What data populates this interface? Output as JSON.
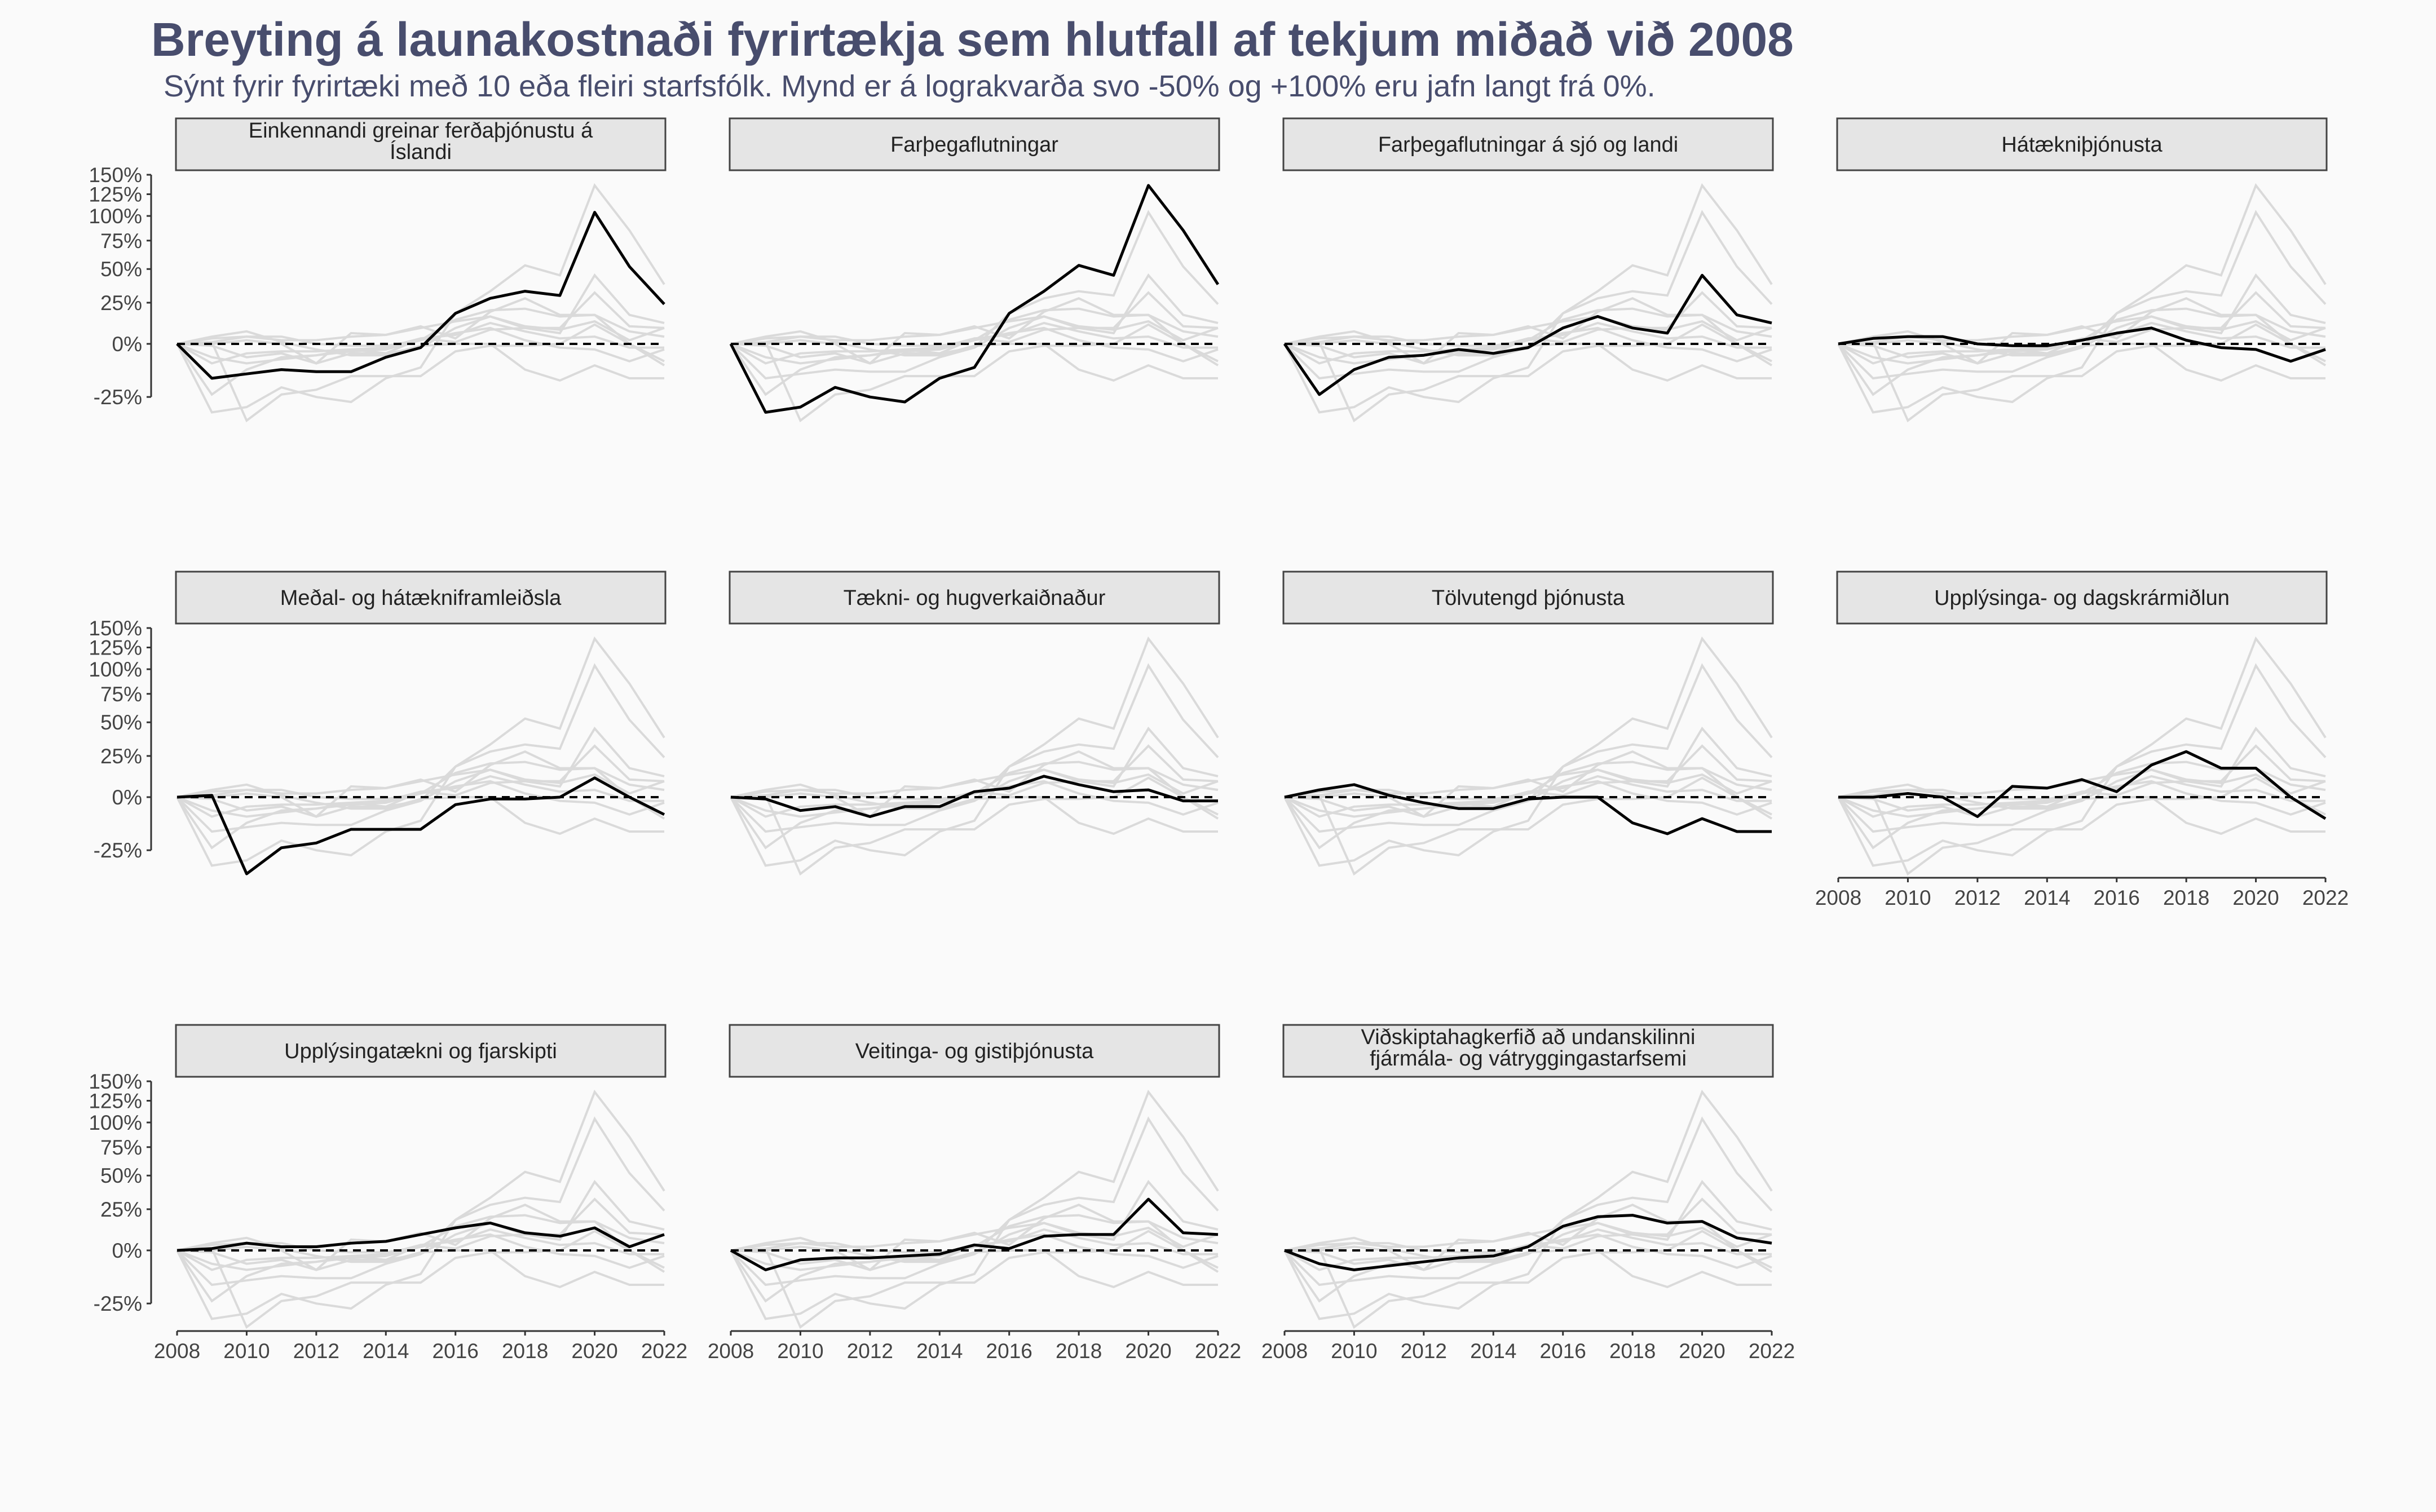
{
  "chart_data": {
    "type": "line",
    "title": "Breyting á launakostnaði fyrirtækja sem hlutfall af tekjum miðað við 2008",
    "subtitle": "Sýnt fyrir fyrirtæki með 10 eða fleiri starfsfólk. Mynd er á lograkvarða svo -50% og +100% eru jafn langt frá 0%.",
    "xlabel": "",
    "ylabel": "",
    "y_scale": "log",
    "x_ticks": [
      2008,
      2010,
      2012,
      2014,
      2016,
      2018,
      2020,
      2022
    ],
    "y_ticks": [
      -25,
      0,
      25,
      50,
      75,
      100,
      125,
      150
    ],
    "y_tick_labels": [
      "-25%",
      "0%",
      "25%",
      "50%",
      "75%",
      "100%",
      "125%",
      "150%"
    ],
    "ylim": [
      -27,
      150
    ],
    "xlim": [
      2008,
      2022
    ],
    "zero_line": "dashed",
    "grid": false,
    "x": [
      2008,
      2009,
      2010,
      2011,
      2012,
      2013,
      2014,
      2015,
      2016,
      2017,
      2018,
      2019,
      2020,
      2021,
      2022
    ],
    "series": [
      {
        "name": "Einkennandi greinar ferðaþjónustu á Íslandi",
        "values": [
          0,
          -17,
          -15,
          -13,
          -14,
          -14,
          -7,
          -2,
          18,
          28,
          33,
          30,
          104,
          52,
          24
        ]
      },
      {
        "name": "Farþegaflutningar",
        "values": [
          0,
          -31,
          -29,
          -21,
          -25,
          -27,
          -17,
          -12,
          18,
          33,
          53,
          45,
          136,
          85,
          38
        ]
      },
      {
        "name": "Farþegaflutningar á sjó og landi",
        "values": [
          0,
          -24,
          -13,
          -7,
          -6,
          -3,
          -5,
          -2,
          9,
          16,
          9,
          6,
          45,
          17,
          12
        ]
      },
      {
        "name": "Hátækniþjónusta",
        "values": [
          0,
          3,
          4,
          4,
          0,
          -1,
          -1,
          2,
          6,
          9,
          2,
          -2,
          -3,
          -9,
          -3
        ]
      },
      {
        "name": "Meðal- og hátækniframleiðsla",
        "values": [
          0,
          1,
          -34,
          -24,
          -22,
          -16,
          -16,
          -16,
          -4,
          -1,
          -1,
          0,
          11,
          0,
          -9
        ]
      },
      {
        "name": "Tækni- og hugverkaiðnaður",
        "values": [
          0,
          -1,
          -7,
          -5,
          -10,
          -5,
          -5,
          3,
          5,
          12,
          7,
          3,
          4,
          -2,
          -2
        ]
      },
      {
        "name": "Tölvutengd þjónusta",
        "values": [
          0,
          4,
          7,
          1,
          -3,
          -6,
          -6,
          -1,
          0,
          0,
          -13,
          -18,
          -11,
          -17,
          -17
        ]
      },
      {
        "name": "Upplýsinga- og dagskrármiðlun",
        "values": [
          0,
          0,
          2,
          0,
          -10,
          6,
          5,
          10,
          3,
          19,
          28,
          17,
          17,
          0,
          -11
        ]
      },
      {
        "name": "Upplýsingatækni og fjarskipti",
        "values": [
          0,
          1,
          4,
          2,
          2,
          4,
          5,
          9,
          13,
          16,
          10,
          8,
          13,
          2,
          9
        ]
      },
      {
        "name": "Veitinga- og gistiþjónusta",
        "values": [
          0,
          -10,
          -5,
          -4,
          -4,
          -3,
          -2,
          3,
          1,
          8,
          9,
          9,
          32,
          10,
          9
        ]
      },
      {
        "name": "Viðskiptahagkerfið að undanskilinni fjármála- og vátryggingastarfsemi",
        "values": [
          0,
          -7,
          -10,
          -8,
          -6,
          -4,
          -3,
          2,
          14,
          20,
          21,
          16,
          17,
          7,
          4
        ]
      }
    ]
  },
  "facets": [
    {
      "label_lines": [
        "Einkennandi greinar ferðaþjónustu á",
        "Íslandi"
      ]
    },
    {
      "label_lines": [
        "Farþegaflutningar"
      ]
    },
    {
      "label_lines": [
        "Farþegaflutningar á sjó og landi"
      ]
    },
    {
      "label_lines": [
        "Hátækniþjónusta"
      ]
    },
    {
      "label_lines": [
        "Meðal- og hátækniframleiðsla"
      ]
    },
    {
      "label_lines": [
        "Tækni- og hugverkaiðnaður"
      ]
    },
    {
      "label_lines": [
        "Tölvutengd þjónusta"
      ]
    },
    {
      "label_lines": [
        "Upplýsinga- og dagskrármiðlun"
      ]
    },
    {
      "label_lines": [
        "Upplýsingatækni og fjarskipti"
      ]
    },
    {
      "label_lines": [
        "Veitinga- og gistiþjónusta"
      ]
    },
    {
      "label_lines": [
        "Viðskiptahagkerfið að undanskilinni",
        "fjármála- og vátryggingastarfsemi"
      ]
    }
  ],
  "colors": {
    "highlight": "#000000",
    "background_series": "#dadada",
    "title": "#484d6d",
    "strip": "#e5e5e5"
  }
}
